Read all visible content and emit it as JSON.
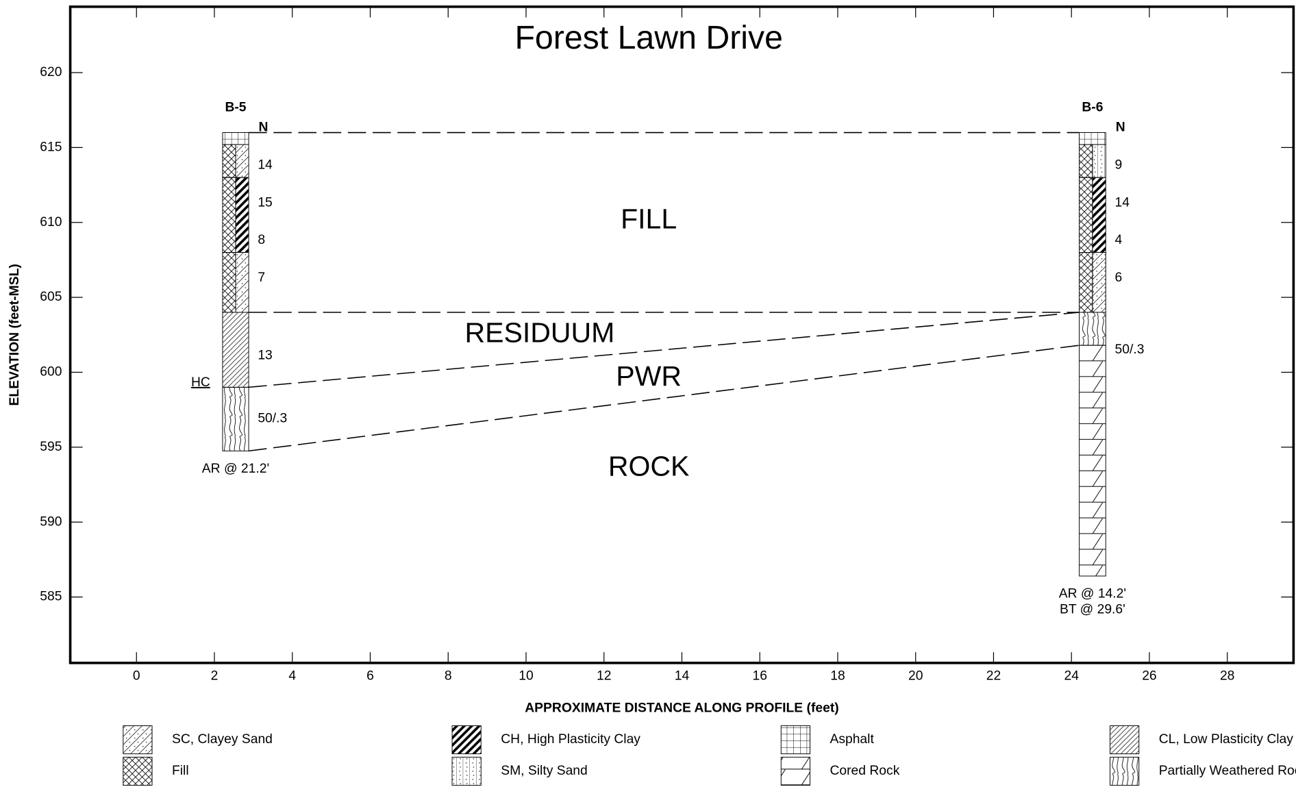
{
  "title": "Forest Lawn Drive",
  "axes": {
    "x_label": "APPROXIMATE DISTANCE ALONG PROFILE  (feet)",
    "y_label": "ELEVATION  (feet-MSL)",
    "xlim": [
      -1.7,
      29.7
    ],
    "ylim": [
      580.6,
      624.4
    ],
    "xticks": [
      0,
      2,
      4,
      6,
      8,
      10,
      12,
      14,
      16,
      18,
      20,
      22,
      24,
      26,
      28
    ],
    "yticks": [
      585,
      590,
      595,
      600,
      605,
      610,
      615,
      620
    ]
  },
  "n_header": "N",
  "borings": [
    {
      "name": "B-5",
      "x": [
        2.21,
        2.88
      ],
      "layers": [
        {
          "top": 616,
          "bottom": 615.2
        },
        {
          "top": 615.2,
          "bottom": 613
        },
        {
          "top": 613,
          "bottom": 608
        },
        {
          "top": 608,
          "bottom": 604
        },
        {
          "top": 604,
          "bottom": 599
        },
        {
          "top": 599,
          "bottom": 594.75
        }
      ],
      "n_values": [
        {
          "elevation": 613.8,
          "text": "14"
        },
        {
          "elevation": 611.3,
          "text": "15"
        },
        {
          "elevation": 608.8,
          "text": "8"
        },
        {
          "elevation": 606.3,
          "text": "7"
        },
        {
          "elevation": 601.1,
          "text": "13"
        },
        {
          "elevation": 596.9,
          "text": "50/.3"
        }
      ],
      "notes": [
        "AR @ 21.2'"
      ],
      "side_label": "HC"
    },
    {
      "name": "B-6",
      "x": [
        24.2,
        24.88
      ],
      "layers": [
        {
          "top": 616,
          "bottom": 615.2
        },
        {
          "top": 615.2,
          "bottom": 613
        },
        {
          "top": 613,
          "bottom": 608
        },
        {
          "top": 608,
          "bottom": 604
        },
        {
          "top": 604,
          "bottom": 601.8
        },
        {
          "top": 601.8,
          "bottom": 586.4
        }
      ],
      "n_values": [
        {
          "elevation": 613.8,
          "text": "9"
        },
        {
          "elevation": 611.3,
          "text": "14"
        },
        {
          "elevation": 608.8,
          "text": "4"
        },
        {
          "elevation": 606.3,
          "text": "6"
        },
        {
          "elevation": 601.5,
          "text": "50/.3"
        }
      ],
      "notes": [
        "AR @ 14.2'",
        "BT @ 29.6'"
      ]
    }
  ],
  "strata_lines": [
    {
      "left": 616,
      "right": 616
    },
    {
      "left": 604,
      "right": 604
    },
    {
      "left": 599,
      "right": 604
    },
    {
      "left": 594.75,
      "right": 601.8
    }
  ],
  "strata_labels": [
    "FILL",
    "RESIDUUM",
    "PWR",
    "ROCK"
  ],
  "legend": [
    "SC, Clayey Sand",
    "CH, High Plasticity Clay",
    "Asphalt",
    "CL, Low Plasticity Clay",
    "Fill",
    "SM, Silty Sand",
    "Cored Rock",
    "Partially Weathered Rock"
  ]
}
